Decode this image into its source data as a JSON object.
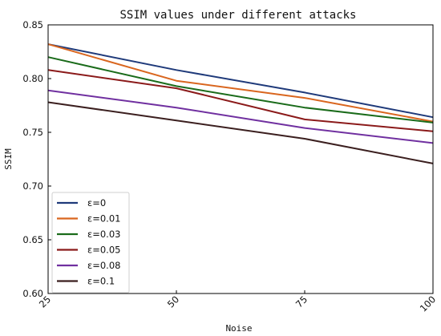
{
  "chart_data": {
    "type": "line",
    "title": "SSIM values under different attacks",
    "xlabel": "Noise",
    "ylabel": "SSIM",
    "x": [
      25,
      50,
      75,
      100
    ],
    "x_tick_labels": [
      "25",
      "50",
      "75",
      "100"
    ],
    "xlim": [
      25,
      100
    ],
    "ylim": [
      0.6,
      0.85
    ],
    "y_ticks": [
      0.6,
      0.65,
      0.7,
      0.75,
      0.8,
      0.85
    ],
    "y_tick_labels": [
      "0.60",
      "0.65",
      "0.70",
      "0.75",
      "0.80",
      "0.85"
    ],
    "grid": false,
    "legend_position": "lower-left",
    "series": [
      {
        "name": "ε=0",
        "color": "#1f3a7a",
        "values": [
          0.832,
          0.808,
          0.787,
          0.764
        ]
      },
      {
        "name": "ε=0.01",
        "color": "#d9661f",
        "values": [
          0.832,
          0.798,
          0.782,
          0.76
        ]
      },
      {
        "name": "ε=0.03",
        "color": "#1a6b1a",
        "values": [
          0.82,
          0.793,
          0.773,
          0.759
        ]
      },
      {
        "name": "ε=0.05",
        "color": "#8b1a1a",
        "values": [
          0.808,
          0.791,
          0.762,
          0.751
        ]
      },
      {
        "name": "ε=0.08",
        "color": "#7030a0",
        "values": [
          0.789,
          0.773,
          0.754,
          0.74
        ]
      },
      {
        "name": "ε=0.1",
        "color": "#3b1f1f",
        "values": [
          0.778,
          0.761,
          0.744,
          0.721
        ]
      }
    ]
  }
}
